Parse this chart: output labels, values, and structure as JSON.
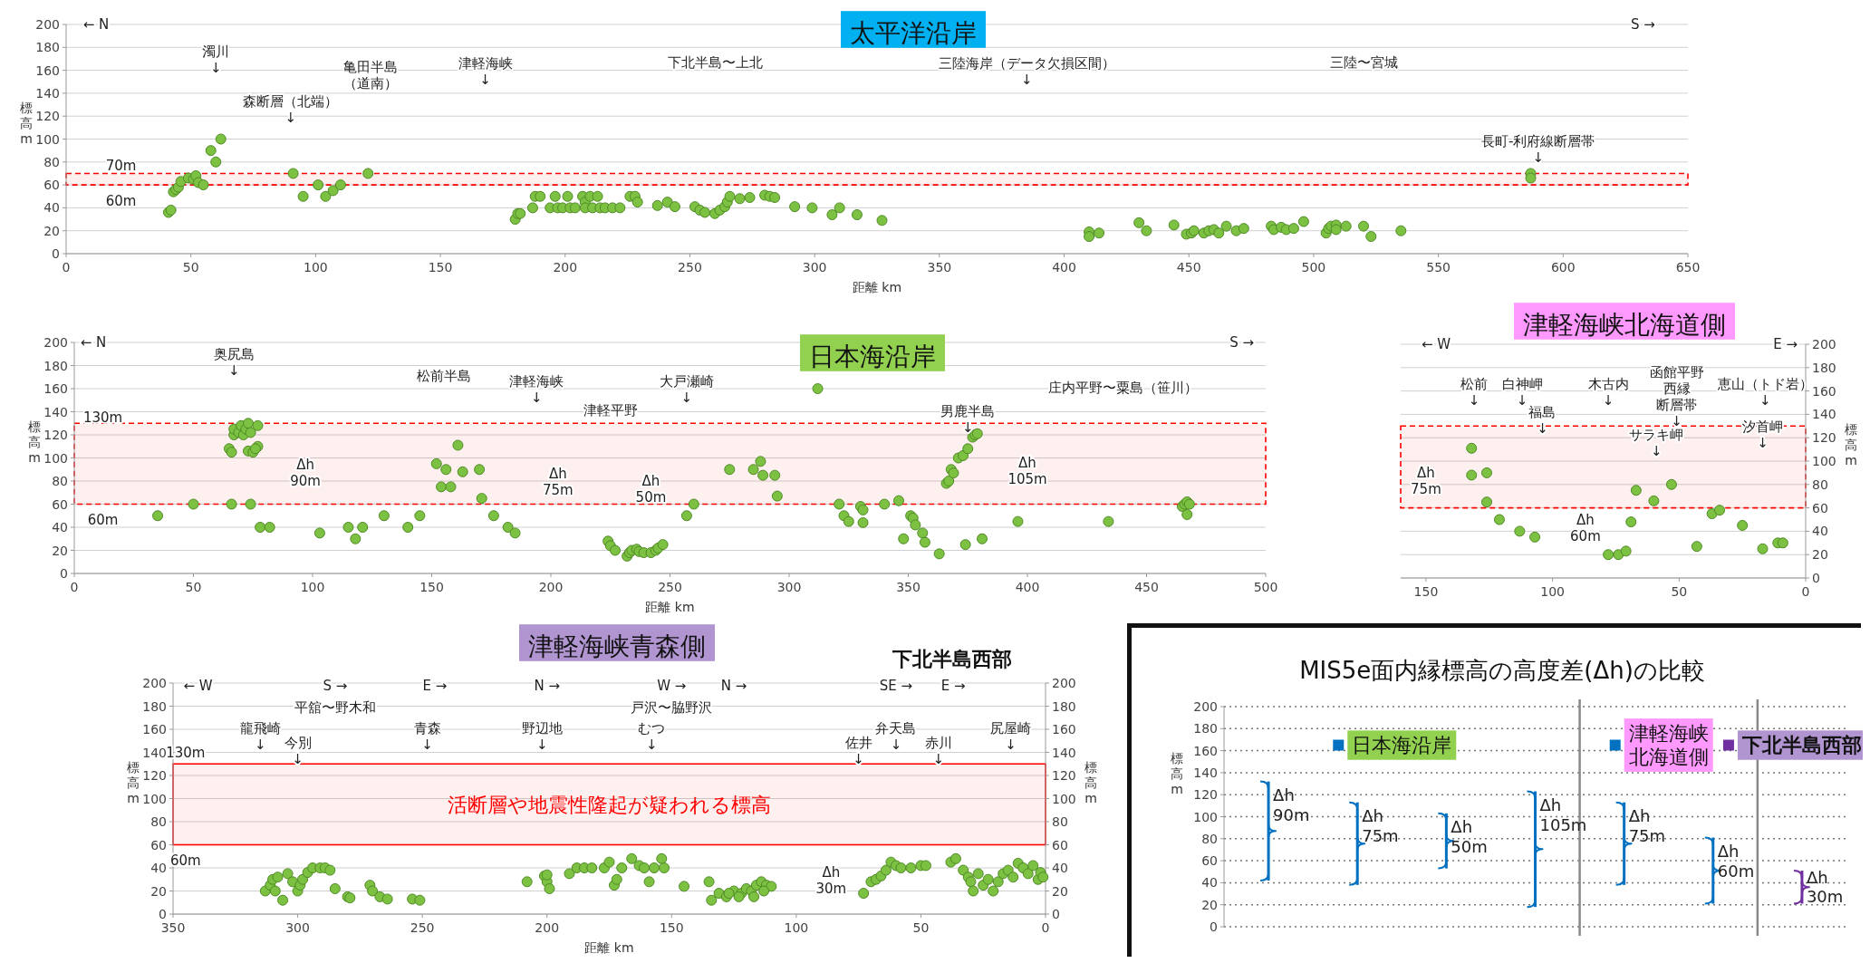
{
  "chart_data": [
    {
      "type": "scatter",
      "title": "太平洋沿岸",
      "xlabel": "距離 km",
      "ylabel": "標高 m",
      "xlim": [
        0,
        650
      ],
      "xticks": [
        0,
        50,
        100,
        150,
        200,
        250,
        300,
        350,
        400,
        450,
        500,
        550,
        600,
        650
      ],
      "ylim": [
        0,
        200
      ],
      "yticks": [
        0,
        20,
        40,
        60,
        80,
        100,
        120,
        140,
        160,
        180,
        200
      ],
      "grid": "y",
      "series": [
        {
          "color": "#7cc142",
          "x": [
            41,
            42,
            43,
            44,
            45,
            46,
            49,
            51,
            52,
            53,
            55,
            58,
            60,
            62,
            91,
            95,
            101,
            104,
            107,
            110,
            121,
            180,
            181,
            182,
            187,
            188,
            190,
            194,
            196,
            197,
            199,
            201,
            202,
            204,
            207,
            208,
            208,
            210,
            211,
            213,
            214,
            216,
            219,
            222,
            226,
            228,
            229,
            237,
            241,
            244,
            252,
            254,
            256,
            260,
            262,
            264,
            265,
            266,
            270,
            274,
            280,
            282,
            284,
            292,
            299,
            307,
            310,
            317,
            327,
            410,
            410,
            414,
            430,
            433,
            444,
            449,
            451,
            452,
            456,
            458,
            460,
            462,
            465,
            469,
            472,
            483,
            484,
            487,
            489,
            492,
            496,
            505,
            506,
            507,
            509,
            509,
            513,
            520,
            523,
            535,
            587,
            587
          ],
          "values": [
            36,
            38,
            54,
            56,
            58,
            63,
            66,
            65,
            68,
            62,
            60,
            90,
            80,
            100,
            70,
            50,
            60,
            50,
            55,
            60,
            70,
            30,
            35,
            35,
            40,
            50,
            50,
            40,
            50,
            40,
            40,
            50,
            40,
            40,
            50,
            45,
            40,
            50,
            40,
            50,
            40,
            40,
            40,
            40,
            50,
            50,
            45,
            42,
            45,
            41,
            41,
            38,
            36,
            35,
            38,
            41,
            45,
            50,
            48,
            49,
            51,
            50,
            49,
            41,
            40,
            34,
            40,
            34,
            29,
            19,
            15,
            18,
            27,
            20,
            25,
            17,
            18,
            20,
            18,
            20,
            21,
            18,
            24,
            20,
            22,
            24,
            21,
            23,
            21,
            22,
            28,
            18,
            22,
            24,
            25,
            21,
            24,
            24,
            15,
            20,
            70,
            66
          ]
        }
      ],
      "bands": [
        {
          "axis": "y",
          "from": 60,
          "to": 70,
          "color": "#ff0000"
        }
      ],
      "annotations": [
        "← N",
        "S →",
        "濁川\n↓",
        "森断層（北端）\n↓",
        "亀田半島（道南）",
        "津軽海峡\n↓",
        "下北半島〜上北",
        "三陸海岸（データ欠損区間）\n↓",
        "三陸〜宮城",
        "長町-利府線断層帯\n↓",
        "70m",
        "60m"
      ]
    },
    {
      "type": "scatter",
      "title": "日本海沿岸",
      "xlabel": "距離 km",
      "ylabel": "標高 m",
      "xlim": [
        0,
        500
      ],
      "xticks": [
        0,
        50,
        100,
        150,
        200,
        250,
        300,
        350,
        400,
        450,
        500
      ],
      "ylim": [
        0,
        200
      ],
      "yticks": [
        0,
        20,
        40,
        60,
        80,
        100,
        120,
        140,
        160,
        180,
        200
      ],
      "grid": "y",
      "series": [
        {
          "color": "#7cc142",
          "x": [
            35,
            50,
            65,
            66,
            67,
            67,
            69,
            70,
            71,
            72,
            73,
            74,
            73,
            75,
            77,
            76,
            77,
            66,
            74,
            78,
            82,
            103,
            115,
            118,
            121,
            130,
            140,
            145,
            152,
            154,
            156,
            158,
            161,
            163,
            170,
            171,
            176,
            182,
            185,
            224,
            225,
            227,
            232,
            233,
            234,
            236,
            237,
            239,
            242,
            244,
            245,
            247,
            257,
            260,
            275,
            285,
            288,
            289,
            294,
            295,
            312,
            321,
            323,
            325,
            330,
            331,
            331,
            340,
            346,
            348,
            351,
            352,
            353,
            356,
            357,
            363,
            366,
            367,
            368,
            369,
            371,
            373,
            375,
            377,
            378,
            379,
            374,
            381,
            396,
            434,
            465,
            466,
            467,
            467,
            468
          ],
          "values": [
            50,
            60,
            108,
            105,
            120,
            125,
            122,
            128,
            120,
            125,
            130,
            122,
            106,
            105,
            110,
            108,
            128,
            60,
            60,
            40,
            40,
            35,
            40,
            30,
            40,
            50,
            40,
            50,
            95,
            75,
            90,
            75,
            111,
            88,
            90,
            65,
            50,
            40,
            35,
            28,
            24,
            20,
            15,
            18,
            20,
            21,
            19,
            18,
            18,
            20,
            22,
            25,
            50,
            60,
            90,
            90,
            97,
            85,
            85,
            67,
            160,
            60,
            50,
            45,
            58,
            55,
            44,
            60,
            63,
            30,
            50,
            48,
            42,
            35,
            27,
            17,
            78,
            80,
            90,
            87,
            100,
            102,
            108,
            118,
            120,
            121,
            25,
            30,
            45,
            45,
            58,
            60,
            62,
            51,
            60
          ]
        }
      ],
      "bands": [
        {
          "axis": "y",
          "from": 60,
          "to": 130,
          "color": "#ff0000"
        }
      ],
      "annotations": [
        "← N",
        "S →",
        "奥尻島\n↓",
        "松前半島",
        "津軽海峡\n↓",
        "津軽平野",
        "大戸瀬崎\n↓",
        "男鹿半島\n↓",
        "庄内平野〜粟島（笹川）",
        "130m",
        "60m",
        "Δh\n90m",
        "Δh\n75m",
        "Δh\n50m",
        "Δh\n105m"
      ]
    },
    {
      "type": "scatter",
      "title": "津軽海峡北海道側",
      "y2label": "標高 m",
      "xlim": [
        160,
        0
      ],
      "xticks": [
        150,
        100,
        50,
        0
      ],
      "y2lim": [
        0,
        200
      ],
      "y2ticks": [
        0,
        20,
        40,
        60,
        80,
        100,
        120,
        140,
        160,
        180,
        200
      ],
      "grid": "y",
      "series": [
        {
          "color": "#7cc142",
          "axis": "y2",
          "x": [
            132,
            132,
            126,
            126,
            121,
            113,
            107,
            78,
            74,
            71,
            69,
            67,
            60,
            53,
            43,
            37,
            34,
            25,
            17,
            11,
            9
          ],
          "values": [
            111,
            88,
            90,
            65,
            50,
            40,
            35,
            20,
            20,
            23,
            48,
            75,
            66,
            80,
            27,
            55,
            58,
            45,
            25,
            30,
            30
          ]
        }
      ],
      "bands": [
        {
          "axis": "y2",
          "from": 60,
          "to": 130,
          "color": "#ff0000"
        }
      ],
      "annotations": [
        "← W",
        "E →",
        "松前\n↓",
        "白神岬\n↓",
        "福島\n↓",
        "木古内\n↓",
        "函館平野西縁断層帯\n↓",
        "サラキ岬\n↓",
        "恵山（トド岩）\n↓",
        "汐首岬\n↓",
        "Δh\n75m",
        "Δh\n60m"
      ]
    },
    {
      "type": "scatter",
      "title": "津軽海峡青森側",
      "subtitle": "下北半島西部",
      "xlabel": "距離 km",
      "ylabel": "標高 m",
      "y2label": "標高 m",
      "xlim": [
        350,
        0
      ],
      "xticks": [
        350,
        300,
        250,
        200,
        150,
        100,
        50,
        0
      ],
      "ylim": [
        0,
        200
      ],
      "yticks": [
        0,
        20,
        40,
        60,
        80,
        100,
        120,
        140,
        160,
        180,
        200
      ],
      "y2lim": [
        0,
        200
      ],
      "y2ticks": [
        0,
        20,
        40,
        60,
        80,
        100,
        120,
        140,
        160,
        180,
        200
      ],
      "grid": "y",
      "series": [
        {
          "color": "#7cc142",
          "x": [
            313,
            311,
            310,
            309,
            308,
            306,
            304,
            302,
            300,
            299,
            298,
            296,
            294,
            291,
            289,
            287,
            285,
            280,
            279,
            271,
            270,
            267,
            264,
            254,
            251,
            208,
            201,
            200,
            199,
            200,
            191,
            188,
            185,
            182,
            177,
            175,
            173,
            172,
            170,
            166,
            163,
            161,
            159,
            157,
            154,
            153,
            145,
            135,
            134,
            131,
            128,
            125,
            122,
            120,
            118,
            116,
            114,
            112,
            110,
            117,
            113,
            127,
            123,
            73,
            70,
            68,
            66,
            64,
            62,
            60,
            58,
            54,
            50,
            48,
            38,
            36,
            33,
            31,
            30,
            29,
            27,
            25,
            23,
            21,
            19,
            17,
            15,
            13,
            11,
            9,
            7,
            5,
            3,
            2,
            1
          ],
          "values": [
            20,
            25,
            30,
            20,
            32,
            12,
            35,
            28,
            20,
            25,
            30,
            36,
            40,
            40,
            40,
            38,
            22,
            15,
            14,
            25,
            20,
            15,
            13,
            13,
            12,
            28,
            33,
            28,
            22,
            34,
            35,
            40,
            40,
            40,
            40,
            45,
            25,
            30,
            40,
            48,
            42,
            40,
            28,
            40,
            48,
            40,
            24,
            28,
            12,
            18,
            15,
            20,
            18,
            22,
            20,
            25,
            28,
            25,
            24,
            15,
            20,
            18,
            15,
            18,
            28,
            30,
            33,
            38,
            45,
            42,
            40,
            40,
            42,
            42,
            45,
            48,
            38,
            32,
            28,
            20,
            35,
            25,
            30,
            20,
            28,
            35,
            38,
            32,
            44,
            40,
            35,
            42,
            30,
            36,
            32
          ]
        }
      ],
      "bands": [
        {
          "axis": "y",
          "from": 60,
          "to": 130,
          "color": "#ff0000",
          "label": "活断層や地震性隆起が疑われる標高"
        }
      ],
      "annotations": [
        "← W",
        "S →",
        "E →",
        "N →",
        "W →",
        "N →",
        "SE →",
        "E →",
        "平舘〜野木和",
        "戸沢〜脇野沢",
        "龍飛崎\n↓",
        "今別\n↓",
        "青森\n↓",
        "野辺地\n↓",
        "むつ\n↓",
        "佐井\n↓",
        "弁天島\n↓",
        "赤川\n↓",
        "尻屋崎\n↓",
        "130m",
        "60m",
        "Δh\n30m"
      ]
    },
    {
      "type": "bar",
      "title": "MIS5e面内縁標高の高度差(Δh)の比較",
      "ylabel": "標高 m",
      "categories": [
        null,
        null,
        null,
        null,
        null,
        null,
        null
      ],
      "ylim": [
        0,
        200
      ],
      "yticks": [
        0,
        20,
        40,
        60,
        80,
        100,
        120,
        140,
        160,
        180,
        200
      ],
      "grid": "y",
      "legend": "top",
      "series": [
        {
          "name": "日本海沿岸",
          "color": "#0070c0",
          "values": [
            90,
            75,
            50,
            105,
            null,
            null,
            null
          ],
          "base": [
            42,
            38,
            53,
            18,
            null,
            null,
            null
          ],
          "value_labels": [
            "Δh\n90m",
            "Δh\n75m",
            "Δh\n50m",
            "Δh\n105m",
            null,
            null,
            null
          ]
        },
        {
          "name": "津軽海峡北海道側",
          "color": "#0070c0",
          "values": [
            null,
            null,
            null,
            null,
            75,
            60,
            null
          ],
          "base": [
            null,
            null,
            null,
            null,
            38,
            21,
            null
          ],
          "value_labels": [
            null,
            null,
            null,
            null,
            "Δh\n75m",
            "Δh\n60m",
            null
          ]
        },
        {
          "name": "下北半島西部",
          "color": "#7030a0",
          "values": [
            null,
            null,
            null,
            null,
            null,
            null,
            30
          ],
          "base": [
            null,
            null,
            null,
            null,
            null,
            null,
            21
          ],
          "value_labels": [
            null,
            null,
            null,
            null,
            null,
            null,
            "Δh\n30m"
          ]
        }
      ]
    }
  ]
}
